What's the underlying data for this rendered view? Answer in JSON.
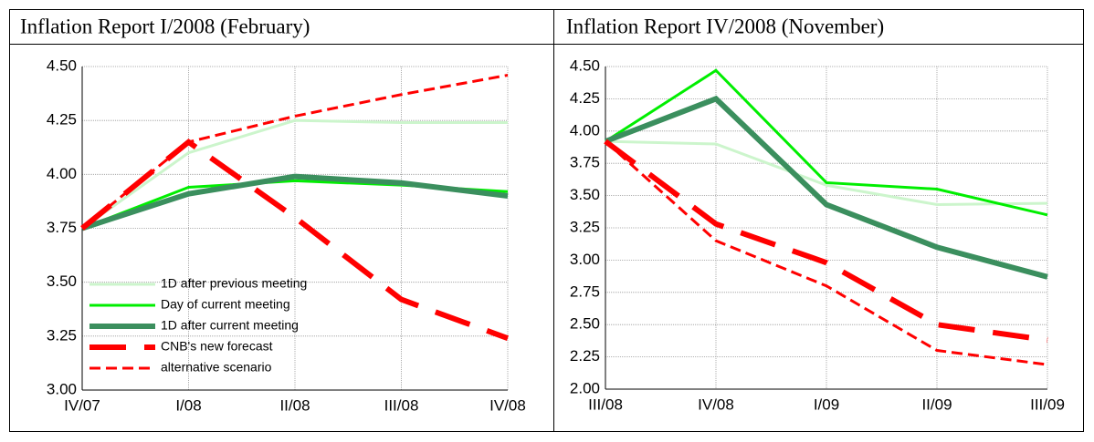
{
  "chart_data": [
    {
      "type": "line",
      "title": "Inflation Report I/2008 (February)",
      "categories": [
        "IV/07",
        "I/08",
        "II/08",
        "III/08",
        "IV/08"
      ],
      "ylim": [
        3,
        4.5
      ],
      "yticks": [
        {
          "value": 3,
          "label": "3.00"
        },
        3.25,
        {
          "value": 3.5,
          "label": "3.50"
        },
        3.75,
        {
          "value": 4,
          "label": "4.00"
        },
        4.25,
        {
          "value": 4.5,
          "label": "4.50"
        }
      ],
      "grid": true,
      "legend": "lower left",
      "series": [
        {
          "name": "1D after previous meeting",
          "color": "#ccf5cc",
          "width": 3,
          "dash": false,
          "values": [
            3.75,
            4.1,
            4.25,
            4.24,
            4.24
          ]
        },
        {
          "name": "Day of current meeting",
          "color": "#00ee00",
          "width": 3,
          "dash": false,
          "values": [
            3.75,
            3.94,
            3.97,
            3.95,
            3.92
          ]
        },
        {
          "name": "1D after current meeting",
          "color": "#3b8f5e",
          "width": 6,
          "dash": false,
          "values": [
            3.75,
            3.91,
            3.99,
            3.96,
            3.9
          ]
        },
        {
          "name": "CNB's new forecast",
          "color": "#ff0000",
          "width": 6,
          "dash": true,
          "values": [
            3.75,
            4.15,
            3.8,
            3.42,
            3.24
          ]
        },
        {
          "name": "alternative scenario",
          "color": "#ff0000",
          "width": 3,
          "dash": true,
          "values": [
            3.75,
            4.15,
            4.27,
            4.37,
            4.46
          ]
        }
      ]
    },
    {
      "type": "line",
      "title": "Inflation Report IV/2008 (November)",
      "categories": [
        "III/08",
        "IV/08",
        "I/09",
        "II/09",
        "III/09"
      ],
      "ylim": [
        2,
        4.5
      ],
      "yticks": [
        {
          "value": 2,
          "label": "2.00"
        },
        2.25,
        {
          "value": 2.5,
          "label": "2.50"
        },
        2.75,
        {
          "value": 3,
          "label": "3.00"
        },
        3.25,
        {
          "value": 3.5,
          "label": "3.50"
        },
        3.75,
        {
          "value": 4,
          "label": "4.00"
        },
        4.25,
        {
          "value": 4.5,
          "label": "4.50"
        }
      ],
      "grid": true,
      "series": [
        {
          "color": "#ccf5cc",
          "width": 3,
          "dash": false,
          "values": [
            3.92,
            3.9,
            3.58,
            3.43,
            3.44
          ]
        },
        {
          "color": "#00ee00",
          "width": 3,
          "dash": false,
          "values": [
            3.92,
            4.47,
            3.6,
            3.55,
            3.35
          ]
        },
        {
          "color": "#3b8f5e",
          "width": 6,
          "dash": false,
          "values": [
            3.92,
            4.25,
            3.43,
            3.1,
            2.87
          ]
        },
        {
          "color": "#ff0000",
          "width": 6,
          "dash": true,
          "values": [
            3.92,
            3.28,
            2.98,
            2.5,
            2.38
          ]
        },
        {
          "color": "#ff0000",
          "width": 3,
          "dash": true,
          "values": [
            3.92,
            3.15,
            2.8,
            2.3,
            2.19
          ]
        }
      ]
    }
  ]
}
